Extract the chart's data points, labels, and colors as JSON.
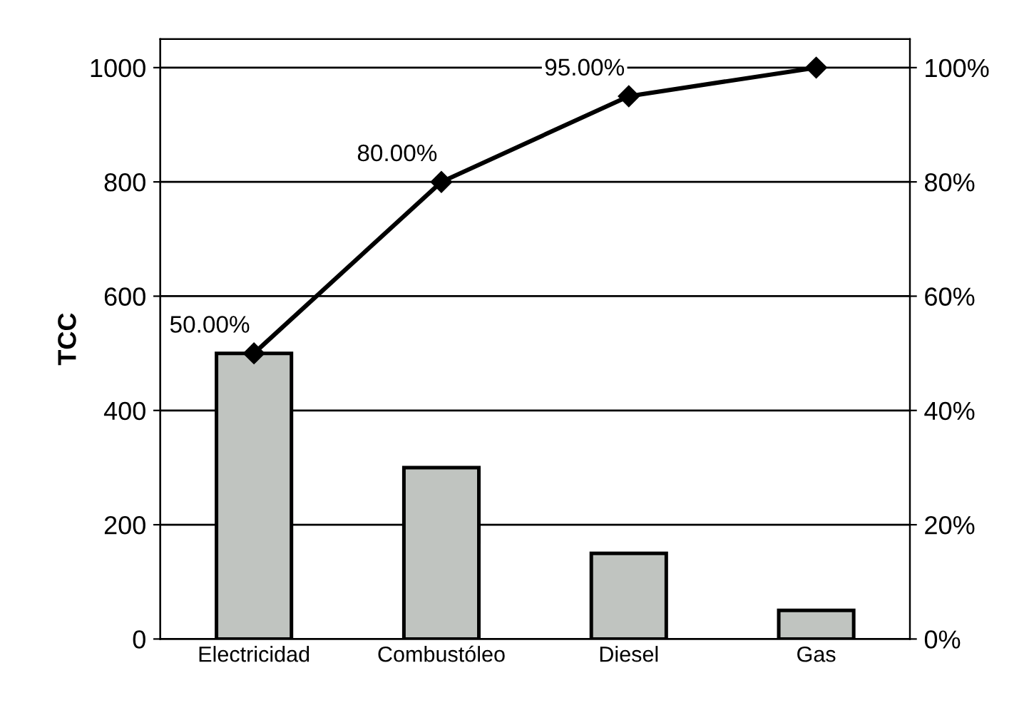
{
  "chart_data": {
    "type": "bar",
    "ylabel": "TCC",
    "categories": [
      "Electricidad",
      "Combustóleo",
      "Diesel",
      "Gas"
    ],
    "series": [
      {
        "color": "#c0c4c0",
        "values": [
          500,
          300,
          150,
          50
        ]
      },
      {
        "type": "line",
        "axis": "y2",
        "color": "#000000",
        "values": [
          50,
          80,
          95,
          100
        ],
        "value_labels": [
          "50.00%",
          "80.00%",
          "95.00%",
          null
        ]
      }
    ],
    "ylim": [
      0,
      1050
    ],
    "yticks": [
      0,
      200,
      400,
      600,
      800,
      1000
    ],
    "y2lim": [
      0,
      105
    ],
    "y2ticks": [
      {
        "value": 0,
        "label": "0%"
      },
      {
        "value": 20,
        "label": "20%"
      },
      {
        "value": 40,
        "label": "40%"
      },
      {
        "value": 60,
        "label": "60%"
      },
      {
        "value": 80,
        "label": "80%"
      },
      {
        "value": 100,
        "label": "100%"
      }
    ],
    "grid": "y",
    "marker": "diamond",
    "line_style": "solid"
  }
}
